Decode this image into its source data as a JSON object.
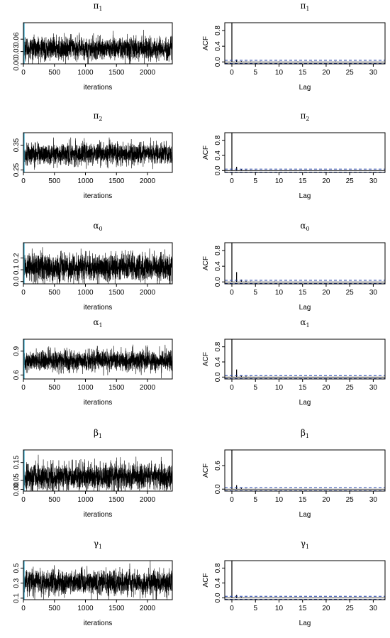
{
  "chart_data": [
    {
      "type": "line",
      "kind": "trace",
      "title_base": "π",
      "title_sub": "1",
      "xlabel": "iterations",
      "ylabel": "",
      "xlim": [
        0,
        2400
      ],
      "ylim": [
        0,
        0.1
      ],
      "xticks": [
        0,
        500,
        1000,
        1500,
        2000
      ],
      "yticks": [
        "0.00",
        "0.03",
        "0.06"
      ],
      "ytick_values": [
        0,
        0.03,
        0.06
      ],
      "mean": 0.037,
      "sd": 0.013,
      "burnin_x": 0,
      "line_color": "#000000",
      "burnin_color": "#3fa9c9"
    },
    {
      "type": "bar",
      "kind": "acf",
      "title_base": "π",
      "title_sub": "1",
      "xlabel": "Lag",
      "ylabel": "ACF",
      "xlim": [
        0,
        34
      ],
      "ylim": [
        -0.05,
        1
      ],
      "xticks": [
        0,
        5,
        10,
        15,
        20,
        25,
        30
      ],
      "yticks": [
        "0.0",
        "0.4",
        "0.8"
      ],
      "ytick_values": [
        0,
        0.4,
        0.8
      ],
      "lags": [
        0,
        1,
        2,
        3,
        4,
        5,
        6,
        7,
        8,
        9,
        10,
        11,
        12,
        13,
        14,
        15,
        16,
        17,
        18,
        19,
        20,
        21,
        22,
        23,
        24,
        25,
        26,
        27,
        28,
        29,
        30,
        31,
        32,
        33
      ],
      "values": [
        1,
        0.06,
        0.02,
        0.01,
        0.01,
        0.0,
        0.01,
        0.0,
        -0.01,
        0.0,
        0.01,
        0.0,
        0.0,
        0.0,
        0.01,
        0.0,
        0.0,
        0.01,
        0.0,
        0.0,
        0.0,
        0.0,
        0.01,
        0.0,
        0.0,
        0.0,
        0.0,
        0.0,
        0.0,
        0.0,
        0.0,
        0.0,
        0.0,
        0.0
      ],
      "ci": 0.04,
      "ci_color": "#1f3fa8"
    },
    {
      "type": "line",
      "kind": "trace",
      "title_base": "π",
      "title_sub": "2",
      "xlabel": "iterations",
      "ylabel": "",
      "xlim": [
        0,
        2400
      ],
      "ylim": [
        0.24,
        0.4
      ],
      "xticks": [
        0,
        500,
        1000,
        1500,
        2000
      ],
      "yticks": [
        "0.25",
        "0.35"
      ],
      "ytick_values": [
        0.25,
        0.35
      ],
      "mean": 0.315,
      "sd": 0.02,
      "burnin_x": 0,
      "line_color": "#000000",
      "burnin_color": "#3fa9c9"
    },
    {
      "type": "bar",
      "kind": "acf",
      "title_base": "π",
      "title_sub": "2",
      "xlabel": "Lag",
      "ylabel": "ACF",
      "xlim": [
        0,
        34
      ],
      "ylim": [
        -0.05,
        1
      ],
      "xticks": [
        0,
        5,
        10,
        15,
        20,
        25,
        30
      ],
      "yticks": [
        "0.0",
        "0.4",
        "0.8"
      ],
      "ytick_values": [
        0,
        0.4,
        0.8
      ],
      "lags": [
        0,
        1,
        2,
        3,
        4,
        5,
        6,
        7,
        8,
        9,
        10,
        11,
        12,
        13,
        14,
        15,
        16,
        17,
        18,
        19,
        20,
        21,
        22,
        23,
        24,
        25,
        26,
        27,
        28,
        29,
        30,
        31,
        32,
        33
      ],
      "values": [
        1,
        0.1,
        0.04,
        0.02,
        0.01,
        0.01,
        0.0,
        0.0,
        0.01,
        0.0,
        0.0,
        0.0,
        0.0,
        0.01,
        0.0,
        0.0,
        0.0,
        0.0,
        0.0,
        0.0,
        0.0,
        0.0,
        0.0,
        0.0,
        0.0,
        0.0,
        0.0,
        0.0,
        0.0,
        0.0,
        0.0,
        0.0,
        0.0,
        0.0
      ],
      "ci": 0.04,
      "ci_color": "#1f3fa8"
    },
    {
      "type": "line",
      "kind": "trace",
      "title_base": "α",
      "title_sub": "0",
      "xlabel": "iterations",
      "ylabel": "",
      "xlim": [
        0,
        2400
      ],
      "ylim": [
        -0.02,
        0.33
      ],
      "xticks": [
        0,
        500,
        1000,
        1500,
        2000
      ],
      "yticks": [
        "0.0",
        "0.1",
        "0.2"
      ],
      "ytick_values": [
        0,
        0.1,
        0.2
      ],
      "mean": 0.12,
      "sd": 0.055,
      "burnin_x": 0,
      "line_color": "#000000",
      "burnin_color": "#3fa9c9"
    },
    {
      "type": "bar",
      "kind": "acf",
      "title_base": "α",
      "title_sub": "0",
      "xlabel": "Lag",
      "ylabel": "ACF",
      "xlim": [
        0,
        34
      ],
      "ylim": [
        -0.05,
        1
      ],
      "xticks": [
        0,
        5,
        10,
        15,
        20,
        25,
        30
      ],
      "yticks": [
        "0.0",
        "0.4",
        "0.8"
      ],
      "ytick_values": [
        0,
        0.4,
        0.8
      ],
      "lags": [
        0,
        1,
        2,
        3,
        4,
        5,
        6,
        7,
        8,
        9,
        10,
        11,
        12,
        13,
        14,
        15,
        16,
        17,
        18,
        19,
        20,
        21,
        22,
        23,
        24,
        25,
        26,
        27,
        28,
        29,
        30,
        31,
        32,
        33
      ],
      "values": [
        1,
        0.25,
        0.06,
        0.02,
        0.01,
        0.0,
        0.01,
        0.0,
        0.0,
        0.01,
        0.0,
        0.0,
        0.0,
        0.0,
        0.0,
        0.0,
        0.0,
        0.0,
        0.0,
        0.0,
        0.0,
        0.0,
        0.0,
        0.0,
        0.0,
        0.0,
        0.0,
        0.0,
        0.0,
        0.0,
        0.0,
        0.0,
        0.0,
        0.0
      ],
      "ci": 0.04,
      "ci_color": "#1f3fa8"
    },
    {
      "type": "line",
      "kind": "trace",
      "title_base": "α",
      "title_sub": "1",
      "xlabel": "iterations",
      "ylabel": "",
      "xlim": [
        0,
        2400
      ],
      "ylim": [
        0.55,
        1.05
      ],
      "xticks": [
        0,
        500,
        1000,
        1500,
        2000
      ],
      "yticks": [
        "0.6",
        "0.9"
      ],
      "ytick_values": [
        0.6,
        0.9
      ],
      "mean": 0.78,
      "sd": 0.06,
      "burnin_x": 0,
      "line_color": "#000000",
      "burnin_color": "#3fa9c9"
    },
    {
      "type": "bar",
      "kind": "acf",
      "title_base": "α",
      "title_sub": "1",
      "xlabel": "Lag",
      "ylabel": "ACF",
      "xlim": [
        0,
        34
      ],
      "ylim": [
        -0.05,
        1
      ],
      "xticks": [
        0,
        5,
        10,
        15,
        20,
        25,
        30
      ],
      "yticks": [
        "0.0",
        "0.4",
        "0.8"
      ],
      "ytick_values": [
        0,
        0.4,
        0.8
      ],
      "lags": [
        0,
        1,
        2,
        3,
        4,
        5,
        6,
        7,
        8,
        9,
        10,
        11,
        12,
        13,
        14,
        15,
        16,
        17,
        18,
        19,
        20,
        21,
        22,
        23,
        24,
        25,
        26,
        27,
        28,
        29,
        30,
        31,
        32,
        33
      ],
      "values": [
        1,
        0.2,
        0.04,
        0.02,
        0.01,
        0.0,
        0.0,
        0.01,
        0.0,
        0.0,
        0.0,
        0.0,
        0.0,
        0.0,
        0.0,
        0.0,
        0.0,
        0.0,
        0.0,
        0.0,
        0.0,
        0.0,
        0.0,
        0.0,
        0.0,
        0.0,
        0.0,
        0.0,
        0.0,
        0.0,
        0.0,
        0.0,
        0.0,
        0.0
      ],
      "ci": 0.04,
      "ci_color": "#1f3fa8"
    },
    {
      "type": "line",
      "kind": "trace",
      "title_base": "β",
      "title_sub": "1",
      "xlabel": "iterations",
      "ylabel": "",
      "xlim": [
        0,
        2400
      ],
      "ylim": [
        -0.01,
        0.22
      ],
      "xticks": [
        0,
        500,
        1000,
        1500,
        2000
      ],
      "yticks": [
        "0.00",
        "0.05",
        "0.15"
      ],
      "ytick_values": [
        0,
        0.05,
        0.15
      ],
      "mean": 0.07,
      "sd": 0.035,
      "burnin_x": 0,
      "line_color": "#000000",
      "burnin_color": "#3fa9c9"
    },
    {
      "type": "bar",
      "kind": "acf",
      "title_base": "β",
      "title_sub": "1",
      "xlabel": "Lag",
      "ylabel": "ACF",
      "xlim": [
        0,
        34
      ],
      "ylim": [
        -0.05,
        1
      ],
      "xticks": [
        0,
        5,
        10,
        15,
        20,
        25,
        30
      ],
      "yticks": [
        "0.0",
        "0.6"
      ],
      "ytick_values": [
        0,
        0.6
      ],
      "lags": [
        0,
        1,
        2,
        3,
        4,
        5,
        6,
        7,
        8,
        9,
        10,
        11,
        12,
        13,
        14,
        15,
        16,
        17,
        18,
        19,
        20,
        21,
        22,
        23,
        24,
        25,
        26,
        27,
        28,
        29,
        30,
        31,
        32,
        33
      ],
      "values": [
        1,
        0.1,
        0.03,
        0.01,
        0.0,
        0.01,
        0.0,
        0.0,
        0.0,
        0.0,
        0.0,
        0.0,
        0.0,
        0.0,
        0.0,
        0.0,
        0.0,
        0.0,
        0.0,
        0.0,
        0.0,
        0.0,
        0.0,
        0.0,
        0.0,
        0.0,
        0.0,
        0.0,
        0.0,
        0.0,
        0.0,
        0.0,
        0.0,
        0.0
      ],
      "ci": 0.04,
      "ci_color": "#1f3fa8"
    },
    {
      "type": "line",
      "kind": "trace",
      "title_base": "γ",
      "title_sub": "1",
      "xlabel": "iterations",
      "ylabel": "",
      "xlim": [
        0,
        2400
      ],
      "ylim": [
        0.08,
        0.6
      ],
      "xticks": [
        0,
        500,
        1000,
        1500,
        2000
      ],
      "yticks": [
        "0.1",
        "0.3",
        "0.5"
      ],
      "ytick_values": [
        0.1,
        0.3,
        0.5
      ],
      "mean": 0.31,
      "sd": 0.075,
      "burnin_x": 0,
      "line_color": "#000000",
      "burnin_color": "#3fa9c9"
    },
    {
      "type": "bar",
      "kind": "acf",
      "title_base": "γ",
      "title_sub": "1",
      "xlabel": "Lag",
      "ylabel": "ACF",
      "xlim": [
        0,
        34
      ],
      "ylim": [
        -0.05,
        1
      ],
      "xticks": [
        0,
        5,
        10,
        15,
        20,
        25,
        30
      ],
      "yticks": [
        "0.0",
        "0.4",
        "0.8"
      ],
      "ytick_values": [
        0,
        0.4,
        0.8
      ],
      "lags": [
        0,
        1,
        2,
        3,
        4,
        5,
        6,
        7,
        8,
        9,
        10,
        11,
        12,
        13,
        14,
        15,
        16,
        17,
        18,
        19,
        20,
        21,
        22,
        23,
        24,
        25,
        26,
        27,
        28,
        29,
        30,
        31,
        32,
        33
      ],
      "values": [
        1,
        0.08,
        0.02,
        0.01,
        0.0,
        0.0,
        0.0,
        0.0,
        0.0,
        0.0,
        0.0,
        0.0,
        0.0,
        0.0,
        0.0,
        0.0,
        0.0,
        0.0,
        0.0,
        0.0,
        0.0,
        0.0,
        0.0,
        0.0,
        0.0,
        0.0,
        0.0,
        0.0,
        0.0,
        0.0,
        0.0,
        0.0,
        0.0,
        0.0
      ],
      "ci": 0.04,
      "ci_color": "#1f3fa8"
    }
  ]
}
